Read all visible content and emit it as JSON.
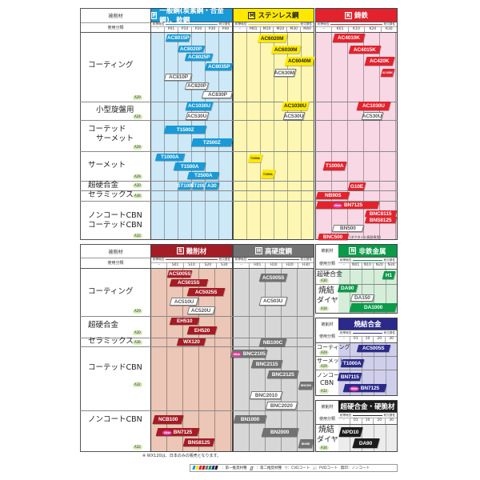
{
  "common": {
    "workpiece_label": "被削材",
    "usage_label": "使用分類",
    "wear_label": "耐摩耗性",
    "chipping_label": "耐欠損性",
    "new_badge": "New"
  },
  "colors": {
    "P": "#1a9ad6",
    "M": "#ffe800",
    "K": "#e2232d",
    "S": "#a41c25",
    "H": "#727272",
    "N": "#0b9a4a",
    "sintered": "#2b2a8a",
    "carbide": "#1c1c1c"
  },
  "top": {
    "columns": {
      "P": {
        "letter": "P",
        "title": "一般鋼(炭素鋼・合金鋼)、軟鋼",
        "cols": [
          "–",
          "P01",
          "P10",
          "P20",
          "P30",
          "P40"
        ]
      },
      "M": {
        "letter": "M",
        "title": "ステンレス鋼",
        "cols": [
          "–",
          "M01",
          "M10",
          "M20",
          "M30",
          "M40"
        ]
      },
      "K": {
        "letter": "K",
        "title": "鋳鉄",
        "cols": [
          "–",
          "K01",
          "K10",
          "K20",
          "K30"
        ]
      }
    },
    "rows": [
      {
        "label": "コーティング",
        "ref": "A29"
      },
      {
        "label": "小型旋盤用",
        "ref": "A24"
      },
      {
        "label": "コーテッド",
        "label2": "サーメット",
        "ref": "A29"
      },
      {
        "label": "サーメット",
        "ref": "A29"
      },
      {
        "label": "超硬合金",
        "ref": "A30"
      },
      {
        "label": "セラミックス",
        "ref": "A36"
      },
      {
        "label": "ノンコートCBN",
        "label2": "コーテッドCBN",
        "ref": "A32"
      }
    ],
    "k_note": "(ダクタイル鋳鉄専用)"
  },
  "bottom": {
    "columns": {
      "S": {
        "letter": "S",
        "title": "難削材",
        "cols": [
          "–",
          "S01",
          "S10",
          "S20",
          "S30"
        ]
      },
      "H": {
        "letter": "H",
        "title": "高硬度鋼",
        "cols": [
          "–",
          "H01",
          "H10",
          "H20",
          "H30"
        ]
      }
    },
    "rows": [
      {
        "label": "コーティング",
        "ref": "A29"
      },
      {
        "label": "超硬合金",
        "ref": "A30"
      },
      {
        "label": "セラミックス",
        "ref": "A36"
      },
      {
        "label": "コーテッドCBN",
        "ref": "A32"
      },
      {
        "label": "ノンコートCBN",
        "ref": "A32"
      }
    ],
    "nonferrous": {
      "letter": "N",
      "title": "非鉄金属",
      "cols": [
        "–",
        "N01",
        "N10",
        "N20",
        "N30"
      ],
      "rows": [
        {
          "label": "超硬合金",
          "ref": "A30"
        },
        {
          "label": "焼結",
          "label2": "ダイヤ",
          "ref": "A34"
        }
      ]
    },
    "sintered": {
      "title": "焼結合金",
      "cols": [
        "–",
        "01",
        "10",
        "20",
        "30"
      ],
      "rows": [
        {
          "label": "コーティング",
          "ref": "A29"
        },
        {
          "label": "サーメット",
          "ref": "A29"
        },
        {
          "label": "ノンコート",
          "label2": "CBN",
          "ref": "A32"
        }
      ]
    },
    "carbide": {
      "title": "超硬合金・硬脆材",
      "cols": [
        "–",
        "01",
        "10",
        "20",
        "30"
      ],
      "rows": [
        {
          "label": "焼結",
          "label2": "ダイヤ",
          "ref": "A34"
        }
      ]
    }
  },
  "grades": {
    "P": [
      {
        "name": "AC8015P",
        "type": "primary"
      },
      {
        "name": "AC8020P",
        "type": "primary"
      },
      {
        "name": "AC8025P",
        "type": "primary"
      },
      {
        "name": "AC8035P",
        "type": "primary"
      },
      {
        "name": "AC810P",
        "type": "secondary"
      },
      {
        "name": "AC820P",
        "type": "secondary"
      },
      {
        "name": "AC830P",
        "type": "secondary"
      },
      {
        "name": "AC1030U",
        "type": "primary"
      },
      {
        "name": "AC530U",
        "type": "secondary"
      },
      {
        "name": "T1500Z",
        "type": "primary"
      },
      {
        "name": "T2500Z",
        "type": "primary"
      },
      {
        "name": "T1000A",
        "type": "primary"
      },
      {
        "name": "T1500A",
        "type": "primary"
      },
      {
        "name": "T2500A",
        "type": "primary"
      },
      {
        "name": "ST10P",
        "type": "primary"
      },
      {
        "name": "ST20E",
        "type": "primary"
      },
      {
        "name": "A30",
        "type": "primary"
      }
    ],
    "M": [
      {
        "name": "AC6020M",
        "type": "primary"
      },
      {
        "name": "AC6030M",
        "type": "primary"
      },
      {
        "name": "AC6040M",
        "type": "primary"
      },
      {
        "name": "AC630M",
        "type": "secondary"
      },
      {
        "name": "AC1030U",
        "type": "primary"
      },
      {
        "name": "AC530U",
        "type": "secondary"
      },
      {
        "name": "T1000A",
        "type": "primary"
      },
      {
        "name": "T1500A",
        "type": "primary"
      }
    ],
    "K": [
      {
        "name": "AC4010K",
        "type": "primary"
      },
      {
        "name": "AC4015K",
        "type": "primary"
      },
      {
        "name": "AC420K",
        "type": "primary"
      },
      {
        "name": "AC405K",
        "type": "primary"
      },
      {
        "name": "AC1030U",
        "type": "primary"
      },
      {
        "name": "AC530U",
        "type": "secondary"
      },
      {
        "name": "T1000A",
        "type": "primary"
      },
      {
        "name": "G10E",
        "type": "primary"
      },
      {
        "name": "NB90S",
        "type": "primary"
      },
      {
        "name": "BN7125",
        "type": "primary",
        "new": true
      },
      {
        "name": "BNC8115",
        "type": "primary"
      },
      {
        "name": "BNS8125",
        "type": "primary"
      },
      {
        "name": "BN500",
        "type": "secondary"
      },
      {
        "name": "BNC500",
        "type": "primary"
      }
    ],
    "S": [
      {
        "name": "AC5005S",
        "type": "primary"
      },
      {
        "name": "AC5015S",
        "type": "primary"
      },
      {
        "name": "AC5025S",
        "type": "primary"
      },
      {
        "name": "AC510U",
        "type": "secondary"
      },
      {
        "name": "AC520U",
        "type": "secondary"
      },
      {
        "name": "EH510",
        "type": "primary"
      },
      {
        "name": "EH520",
        "type": "primary"
      },
      {
        "name": "WX120",
        "type": "primary"
      },
      {
        "name": "NCB100",
        "type": "primary"
      },
      {
        "name": "BN7125",
        "type": "primary",
        "new": true
      },
      {
        "name": "BNS8125",
        "type": "primary"
      }
    ],
    "H": [
      {
        "name": "AC5005S",
        "type": "primary"
      },
      {
        "name": "AC503U",
        "type": "secondary"
      },
      {
        "name": "NB100C",
        "type": "primary"
      },
      {
        "name": "BNC2105",
        "type": "primary",
        "new": true
      },
      {
        "name": "BNC2115",
        "type": "primary"
      },
      {
        "name": "BNC2125",
        "type": "primary"
      },
      {
        "name": "BNC300",
        "type": "primary"
      },
      {
        "name": "BNC2010",
        "type": "secondary"
      },
      {
        "name": "BNC2020",
        "type": "secondary"
      },
      {
        "name": "BN1000",
        "type": "primary"
      },
      {
        "name": "BN2000",
        "type": "primary"
      },
      {
        "name": "BN350",
        "type": "primary"
      }
    ],
    "N": [
      {
        "name": "H1",
        "type": "primary"
      },
      {
        "name": "DA90",
        "type": "primary"
      },
      {
        "name": "DA150",
        "type": "secondary"
      },
      {
        "name": "DA1000",
        "type": "primary"
      }
    ],
    "sintered": [
      {
        "name": "AC5005S",
        "type": "primary"
      },
      {
        "name": "T1000A",
        "type": "primary"
      },
      {
        "name": "BN7115",
        "type": "primary"
      },
      {
        "name": "BN7125",
        "type": "primary",
        "new": true
      }
    ],
    "carbide": [
      {
        "name": "NPD10",
        "type": "primary"
      },
      {
        "name": "DA90",
        "type": "primary"
      }
    ]
  },
  "footnote": "※ WX120は、日本のみの販売となります。",
  "legend": {
    "primary": "：第一推奨材種",
    "secondary": "：第二推奨材種",
    "cvd": "▽：CVDコート",
    "pvd": "△：PVDコート",
    "none": "無印：ノンコート"
  }
}
